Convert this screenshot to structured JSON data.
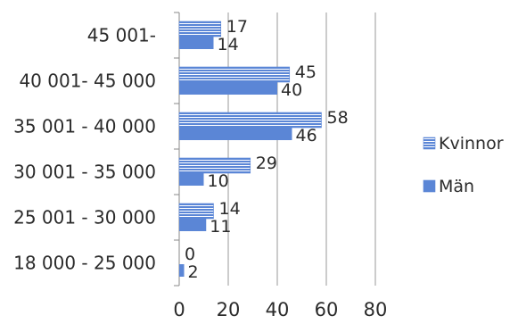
{
  "chart_data": {
    "type": "bar",
    "orientation": "horizontal",
    "title": "",
    "xlabel": "",
    "ylabel": "",
    "categories": [
      "18 000 - 25 000",
      "25 001 - 30 000",
      "30 001 - 35 000",
      "35 001 - 40 000",
      "40 001- 45 000",
      "45 001-"
    ],
    "series": [
      {
        "name": "Kvinnor",
        "values": [
          0,
          14,
          29,
          58,
          45,
          17
        ],
        "color": "#5b86d6",
        "pattern": "striped"
      },
      {
        "name": "Män",
        "values": [
          2,
          11,
          10,
          46,
          40,
          14
        ],
        "color": "#5b86d6",
        "pattern": "solid"
      }
    ],
    "xlim": [
      0,
      80
    ],
    "x_ticks": [
      "0",
      "20",
      "40",
      "60",
      "80"
    ],
    "grid": "vertical",
    "legend_position": "right"
  }
}
